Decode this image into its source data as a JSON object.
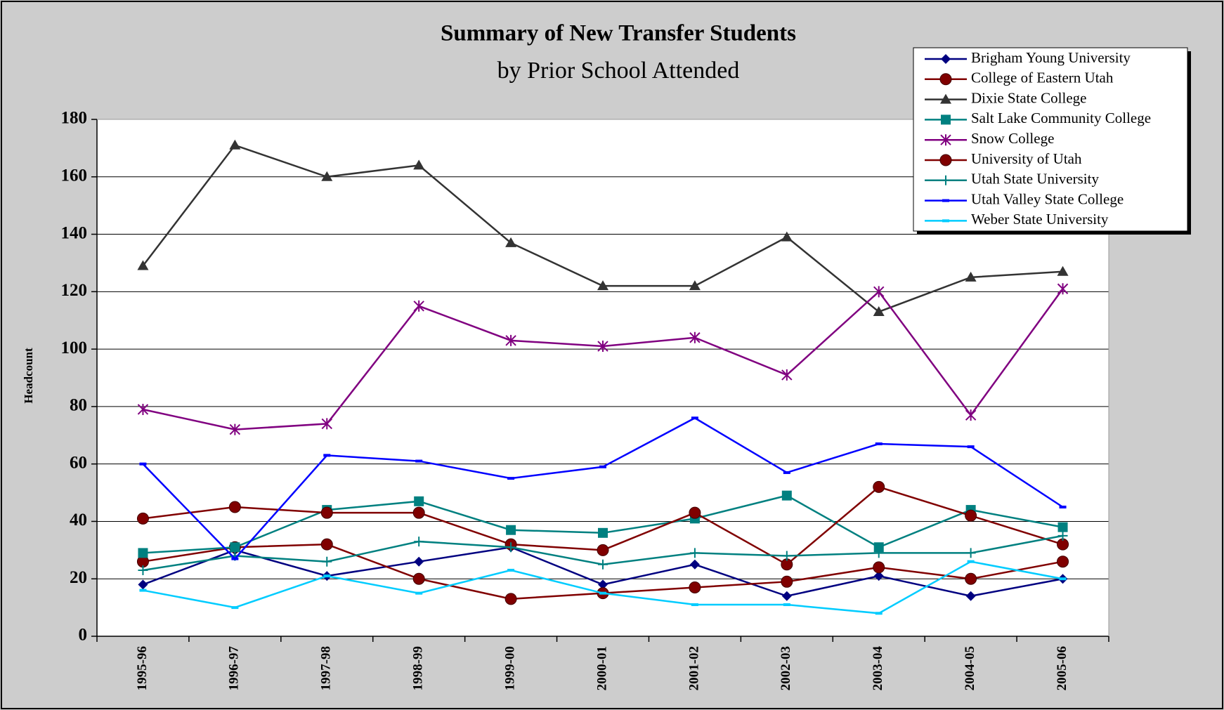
{
  "chart_data": {
    "type": "line",
    "title": "Summary of New Transfer Students",
    "subtitle": "by Prior School Attended",
    "y_label": "Headcount",
    "categories": [
      "1995-96",
      "1996-97",
      "1997-98",
      "1998-99",
      "1999-00",
      "2000-01",
      "2001-02",
      "2002-03",
      "2003-04",
      "2004-05",
      "2005-06"
    ],
    "ylim": [
      0,
      180
    ],
    "yticks": [
      0,
      20,
      40,
      60,
      80,
      100,
      120,
      140,
      160,
      180
    ],
    "grid": true,
    "legend": "top-right",
    "series": [
      {
        "name": "Brigham Young University",
        "color": "#000080",
        "marker": "diamond",
        "values": [
          18,
          30,
          21,
          26,
          31,
          18,
          25,
          14,
          21,
          14,
          20
        ]
      },
      {
        "name": "College of Eastern Utah",
        "color": "#800000",
        "marker": "circle",
        "values": [
          26,
          31,
          32,
          20,
          13,
          15,
          17,
          19,
          24,
          20,
          26
        ]
      },
      {
        "name": "Dixie State College",
        "color": "#333333",
        "marker": "triangle",
        "values": [
          129,
          171,
          160,
          164,
          137,
          122,
          122,
          139,
          113,
          125,
          127
        ]
      },
      {
        "name": "Salt Lake Community College",
        "color": "#008080",
        "marker": "square",
        "values": [
          29,
          31,
          44,
          47,
          37,
          36,
          41,
          49,
          31,
          44,
          38
        ]
      },
      {
        "name": "Snow College",
        "color": "#800080",
        "marker": "star",
        "values": [
          79,
          72,
          74,
          115,
          103,
          101,
          104,
          91,
          120,
          77,
          121
        ]
      },
      {
        "name": "University of Utah",
        "color": "#800000",
        "marker": "circle",
        "values": [
          41,
          45,
          43,
          43,
          32,
          30,
          43,
          25,
          52,
          42,
          32
        ]
      },
      {
        "name": "Utah State University",
        "color": "#008080",
        "marker": "plus",
        "values": [
          23,
          28,
          26,
          33,
          31,
          25,
          29,
          28,
          29,
          29,
          35
        ]
      },
      {
        "name": "Utah Valley State College",
        "color": "#0000ff",
        "marker": "dash",
        "values": [
          60,
          27,
          63,
          61,
          55,
          59,
          76,
          57,
          67,
          66,
          45
        ]
      },
      {
        "name": "Weber State University",
        "color": "#00ccff",
        "marker": "dash",
        "values": [
          16,
          10,
          21,
          15,
          23,
          15,
          11,
          11,
          8,
          26,
          20
        ]
      }
    ]
  }
}
